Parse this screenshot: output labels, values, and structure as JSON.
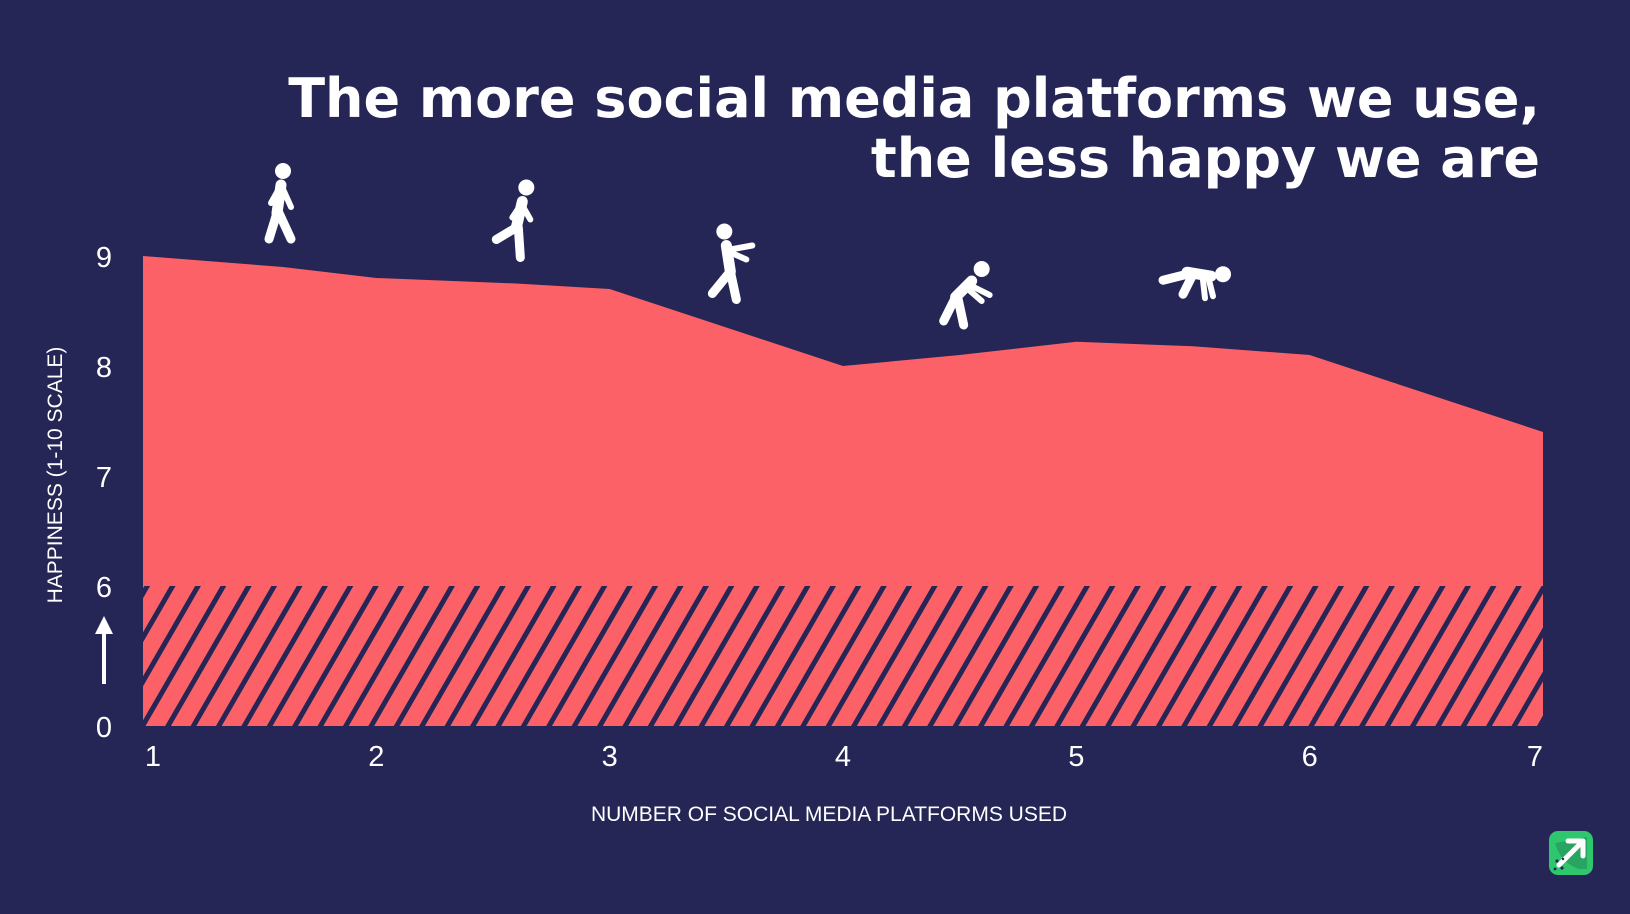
{
  "colors": {
    "background": "#252655",
    "area": "#fc6168",
    "hatch": "#252655",
    "text": "#ffffff",
    "logo_green": "#2fc76e"
  },
  "logo": {
    "icon": "trend-arrow-logo-icon"
  },
  "chart_data": {
    "type": "area",
    "title": [
      "The more social media platforms we use,",
      "the less happy we are"
    ],
    "xlabel": "NUMBER OF SOCIAL MEDIA PLATFORMS USED",
    "ylabel": "HAPPINESS (1-10 SCALE)",
    "x_ticks": [
      "1",
      "2",
      "3",
      "4",
      "5",
      "6",
      "7"
    ],
    "y_ticks": [
      "0",
      "6",
      "7",
      "8",
      "9"
    ],
    "y_axis_break": "arrow between 0 and 6",
    "xlim": [
      1,
      7
    ],
    "y_segments": [
      {
        "from": 0,
        "to": 6,
        "style": "hatched"
      },
      {
        "from": 6,
        "to": 9.3,
        "style": "solid"
      }
    ],
    "x": [
      1,
      1.6,
      2,
      2.6,
      3,
      3.5,
      4,
      4.5,
      5,
      5.5,
      6,
      7
    ],
    "y": [
      9.0,
      8.9,
      8.8,
      8.75,
      8.7,
      8.35,
      8.0,
      8.1,
      8.22,
      8.18,
      8.1,
      7.4
    ],
    "figures": [
      {
        "icon": "walking-person-icon",
        "x": 1.6
      },
      {
        "icon": "stumbling-person-icon",
        "x": 2.6
      },
      {
        "icon": "limping-person-icon",
        "x": 3.5
      },
      {
        "icon": "hunched-person-icon",
        "x": 4.5
      },
      {
        "icon": "crawling-person-icon",
        "x": 5.5
      }
    ],
    "grid": false,
    "legend": "none"
  }
}
